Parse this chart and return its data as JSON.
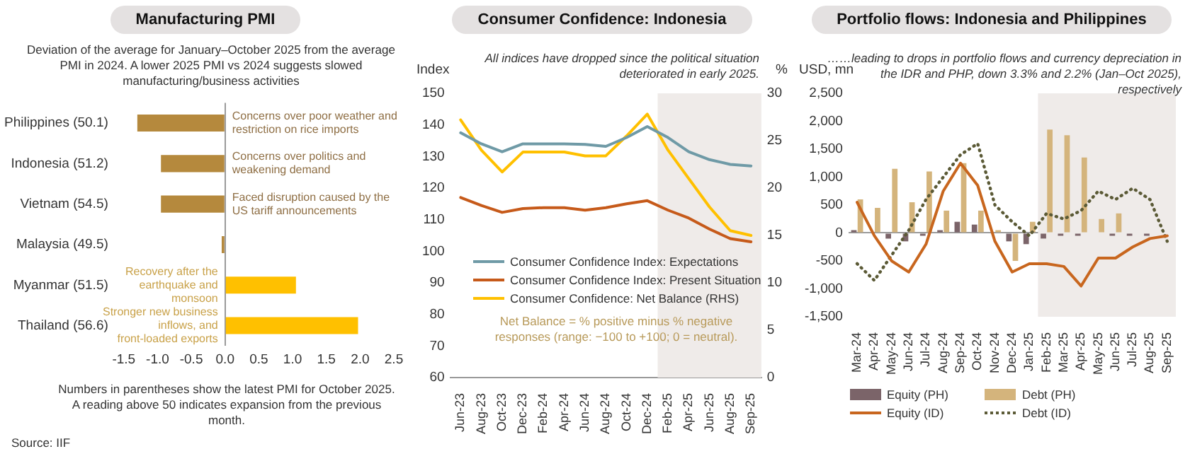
{
  "chart_data": [
    {
      "type": "bar",
      "orientation": "horizontal",
      "title": "Manufacturing PMI",
      "subtitle": "Deviation of the average for January–October 2025 from the average PMI in 2024. A lower 2025 PMI vs 2024 suggests slowed manufacturing/business activities",
      "categories": [
        "Philippines (50.1)",
        "Indonesia (51.2)",
        "Vietnam (54.5)",
        "Malaysia (49.5)",
        "Myanmar (51.5)",
        "Thailand (56.6)"
      ],
      "values": [
        -1.3,
        -0.95,
        -0.95,
        -0.05,
        1.05,
        1.97
      ],
      "colors": [
        "#b5893d",
        "#b5893d",
        "#b5893d",
        "#b5893d",
        "#ffc000",
        "#ffc000"
      ],
      "xlim": [
        -1.5,
        2.5
      ],
      "xticks": [
        -1.5,
        {
          "value": -1,
          "label": "-1.0"
        },
        -0.5,
        {
          "value": 0,
          "label": "0.0"
        },
        0.5,
        {
          "value": 1,
          "label": "1.0"
        },
        1.5,
        {
          "value": 2,
          "label": "2.0"
        },
        2.5
      ],
      "annotations": [
        "Concerns over poor weather and restriction on rice imports",
        "Concerns over politics and weakening demand",
        "Faced disruption caused by the US tariff announcements",
        "Recovery after the earthquake and monsoon",
        "Stronger new business inflows, and front-loaded exports",
        "Numbers in parentheses show the latest PMI for October 2025. A reading above 50 indicates expansion from the previous month.",
        "Source: IIF"
      ]
    },
    {
      "type": "line",
      "title": "Consumer Confidence: Indonesia",
      "subtitle": "All indices have dropped since the political situation deteriorated in early 2025.",
      "ylabel": "Index",
      "y2label": "%",
      "categories": [
        "Jun-23",
        "Aug-23",
        "Oct-23",
        "Dec-23",
        "Feb-24",
        "Apr-24",
        "Jun-24",
        "Aug-24",
        "Oct-24",
        "Dec-24",
        "Feb-25",
        "Apr-25",
        "Jun-25",
        "Aug-25",
        "Sep-25"
      ],
      "series": [
        {
          "name": "Consumer Confidence Index: Expectations",
          "color": "#6f9aa6",
          "values": [
            137.5,
            134,
            131.5,
            134,
            134,
            134,
            133.8,
            133.2,
            136,
            139.5,
            136,
            131.5,
            129,
            127.5,
            127
          ]
        },
        {
          "name": "Consumer Confidence Index: Present Situation",
          "color": "#c65a1a",
          "values": [
            117,
            114.5,
            112.3,
            113.5,
            113.8,
            113.8,
            113,
            113.8,
            115,
            116,
            113,
            110.5,
            107,
            104,
            103
          ]
        },
        {
          "name": "Consumer Confidence: Net Balance (RHS)",
          "color": "#ffc000",
          "axis": "y2",
          "values": [
            27.2,
            24,
            21.7,
            23.8,
            23.8,
            23.8,
            23.4,
            23.4,
            25.5,
            27.8,
            24,
            21,
            18,
            15.5,
            15
          ]
        }
      ],
      "ylim": [
        60,
        150
      ],
      "yticks": [
        60,
        70,
        80,
        90,
        100,
        110,
        120,
        130,
        140,
        150
      ],
      "y2lim": [
        0,
        30
      ],
      "y2ticks": [
        0,
        5,
        10,
        15,
        20,
        25,
        30
      ],
      "bands": [
        {
          "axis": "x",
          "from": "Feb-25",
          "to": "Sep-25",
          "color": "#efebe9"
        }
      ],
      "legend": "bottom left",
      "annotations": [
        "Net Balance = % positive minus % negative responses (range: −100 to +100; 0 = neutral)."
      ]
    },
    {
      "type": "bar",
      "title": "Portfolio flows: Indonesia and Philippines",
      "subtitle": "……leading to drops in portfolio flows and currency depreciation in the IDR and PHP, down 3.3% and 2.2% (Jan–Oct 2025), respectively",
      "ylabel": "USD, mn",
      "categories": [
        "Mar-24",
        "Apr-24",
        "May-24",
        "Jun-24",
        "Jul-24",
        "Aug-24",
        "Sep-24",
        "Oct-24",
        "Nov-24",
        "Dec-24",
        "Jan-25",
        "Feb-25",
        "Mar-25",
        "Apr-25",
        "May-25",
        "Jun-25",
        "Jul-25",
        "Aug-25",
        "Sep-25"
      ],
      "series": [
        {
          "name": "Equity (PH)",
          "color": "#7b6469",
          "values": [
            50,
            0,
            -100,
            -150,
            -50,
            50,
            200,
            150,
            0,
            -150,
            -200,
            -100,
            -50,
            -50,
            0,
            -50,
            -50,
            -50,
            0
          ]
        },
        {
          "name": "Debt (PH)",
          "color": "#d4b47c",
          "values": [
            600,
            450,
            1150,
            550,
            1100,
            400,
            1250,
            400,
            50,
            -500,
            200,
            1850,
            1750,
            1350,
            250,
            350,
            0,
            0,
            0
          ]
        },
        {
          "name": "Equity (ID)",
          "type": "line",
          "color": "#c8661e",
          "values": [
            550,
            -50,
            -500,
            -700,
            -200,
            750,
            1250,
            850,
            -150,
            -700,
            -550,
            -550,
            -600,
            -950,
            -450,
            -450,
            -250,
            -100,
            -50
          ]
        },
        {
          "name": "Debt (ID)",
          "type": "line",
          "line_style": "dotted",
          "color": "#5b5a36",
          "values": [
            -550,
            -850,
            -400,
            50,
            600,
            1000,
            1400,
            1600,
            500,
            200,
            -50,
            350,
            250,
            400,
            750,
            600,
            800,
            600,
            -150
          ]
        }
      ],
      "ylim": [
        -1500,
        2500
      ],
      "yticks": [
        {
          "value": -1500,
          "label": "-1,500"
        },
        {
          "value": -1000,
          "label": "-1,000"
        },
        -500,
        0,
        500,
        {
          "value": 1000,
          "label": "1,000"
        },
        {
          "value": 1500,
          "label": "1,500"
        },
        {
          "value": 2000,
          "label": "2,000"
        },
        {
          "value": 2500,
          "label": "2,500"
        }
      ],
      "bands": [
        {
          "axis": "x",
          "from": "Feb-25",
          "to": "Sep-25",
          "color": "#efebe9"
        }
      ],
      "legend": "bottom"
    }
  ]
}
